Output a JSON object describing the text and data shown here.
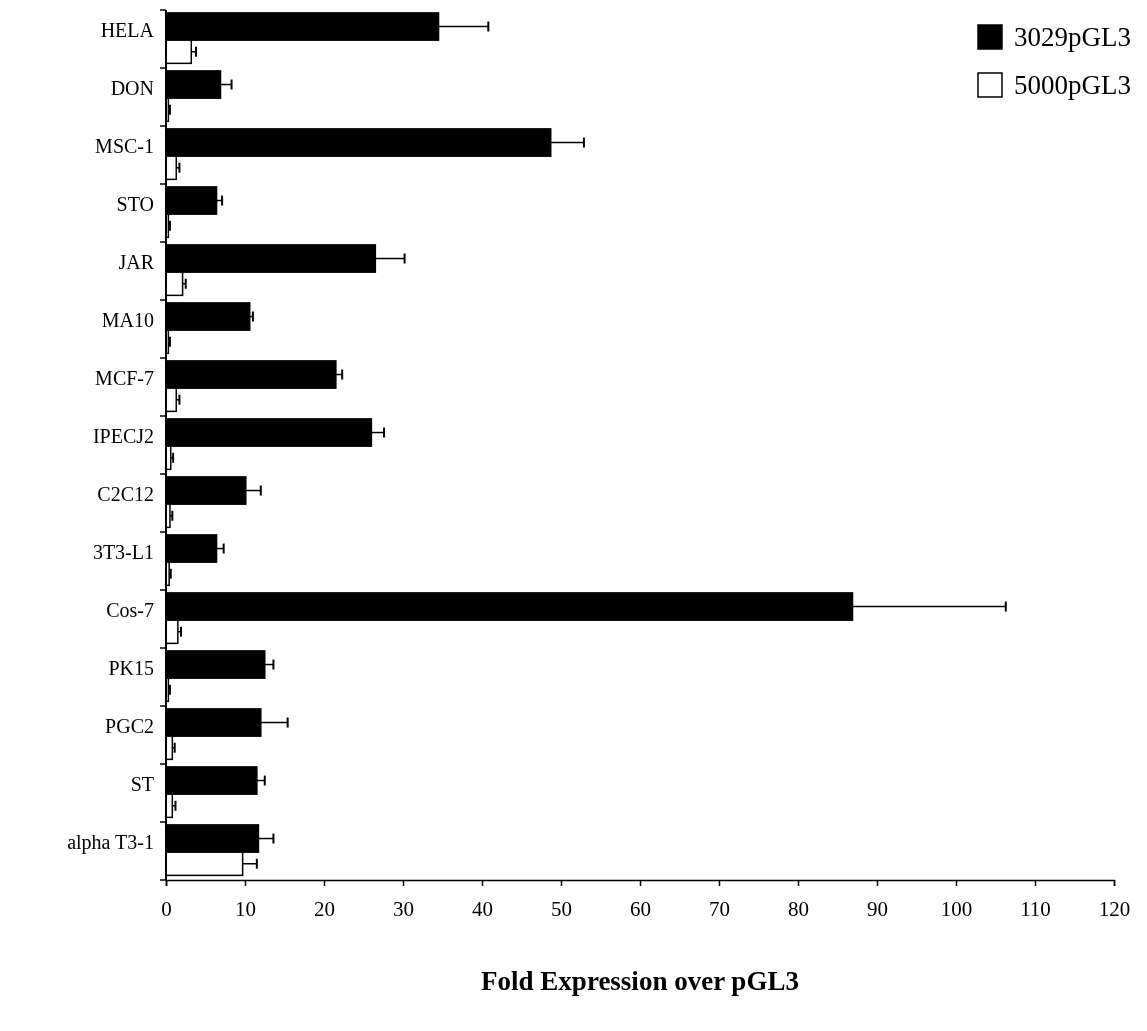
{
  "chart_data": {
    "type": "bar",
    "orientation": "horizontal",
    "xlabel": "Fold Expression over pGL3",
    "categories": [
      "HELA",
      "DON",
      "MSC-1",
      "STO",
      "JAR",
      "MA10",
      "MCF-7",
      "IPECJ2",
      "C2C12",
      "3T3-L1",
      "Cos-7",
      "PK15",
      "PGC2",
      "ST",
      "alpha T3-1"
    ],
    "series": [
      {
        "name": "3029pGL3",
        "color": "#000000",
        "values": [
          34.5,
          6.9,
          48.7,
          6.4,
          26.5,
          10.6,
          21.5,
          26.0,
          10.1,
          6.4,
          86.9,
          12.5,
          12.0,
          11.5,
          11.7
        ],
        "errors": [
          6.3,
          1.4,
          4.2,
          0.7,
          3.7,
          0.4,
          0.8,
          1.6,
          1.9,
          0.9,
          19.4,
          1.1,
          3.4,
          1.0,
          1.9
        ]
      },
      {
        "name": "5000pGL3",
        "color": "#ffffff",
        "values": [
          3.2,
          0.3,
          1.3,
          0.3,
          2.1,
          0.3,
          1.3,
          0.6,
          0.5,
          0.4,
          1.5,
          0.3,
          0.8,
          0.8,
          9.7
        ],
        "errors": [
          0.6,
          0.2,
          0.4,
          0.2,
          0.4,
          0.2,
          0.4,
          0.3,
          0.3,
          0.2,
          0.4,
          0.2,
          0.3,
          0.4,
          1.8
        ]
      }
    ],
    "xlim": [
      0,
      120
    ],
    "xticks": [
      0,
      10,
      20,
      30,
      40,
      50,
      60,
      70,
      80,
      90,
      100,
      110,
      120
    ],
    "legend": "top right",
    "grid": false
  }
}
